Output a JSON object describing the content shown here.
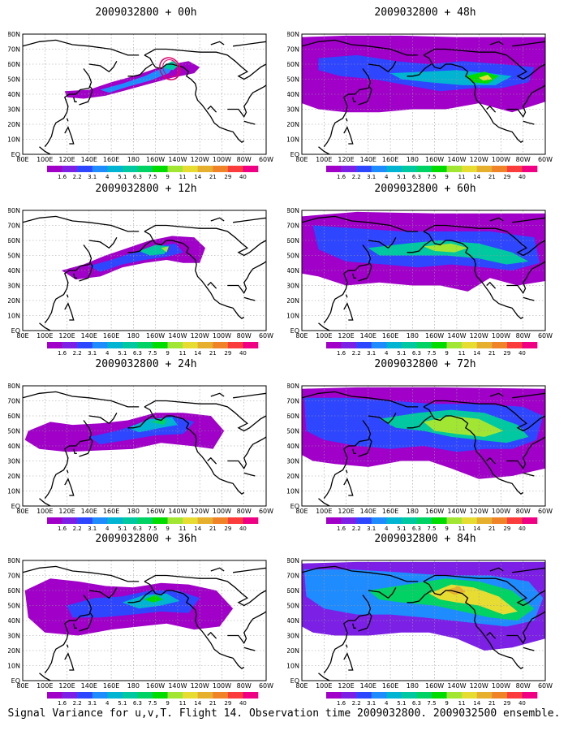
{
  "colors": {
    "bins": [
      "#a000c8",
      "#7c20e6",
      "#2e46ff",
      "#1e8cff",
      "#00b4d2",
      "#00c8a0",
      "#00d264",
      "#00dc00",
      "#a0e632",
      "#e6dc32",
      "#e6af2d",
      "#f08228",
      "#fa3c3c",
      "#f00082"
    ],
    "land": "#000000",
    "grid": "#9a9a9a"
  },
  "colorbar_labels": [
    "1.6",
    "2.2",
    "3.1",
    "4",
    "5.1",
    "6.3",
    "7.5",
    "9",
    "11",
    "14",
    "21",
    "29",
    "40"
  ],
  "lat_labels": [
    "80N",
    "70N",
    "60N",
    "50N",
    "40N",
    "30N",
    "20N",
    "10N",
    "EQ"
  ],
  "lon_labels": [
    "80E",
    "100E",
    "120E",
    "140E",
    "160E",
    "180",
    "160W",
    "140W",
    "120W",
    "100W",
    "80W",
    "60W"
  ],
  "caption": "Signal Variance for u,v,T. Flight 14. Observation time 2009032800. 2009032500 ensemble.",
  "chart_data": [
    {
      "type": "heatmap",
      "title": "2009032800 + 00h",
      "lead_hours": 0,
      "xlim": [
        "80E",
        "60W"
      ],
      "ylim": [
        "EQ",
        "80N"
      ],
      "colorbar_levels": [
        1.6,
        2.2,
        3.1,
        4,
        5.1,
        6.3,
        7.5,
        9,
        11,
        14,
        21,
        29,
        40
      ],
      "peak_bin": 5,
      "marker": "observation-ellipse"
    },
    {
      "type": "heatmap",
      "title": "2009032800 + 12h",
      "lead_hours": 12,
      "xlim": [
        "80E",
        "60W"
      ],
      "ylim": [
        "EQ",
        "80N"
      ],
      "colorbar_levels": [
        1.6,
        2.2,
        3.1,
        4,
        5.1,
        6.3,
        7.5,
        9,
        11,
        14,
        21,
        29,
        40
      ],
      "peak_bin": 8
    },
    {
      "type": "heatmap",
      "title": "2009032800 + 24h",
      "lead_hours": 24,
      "xlim": [
        "80E",
        "60W"
      ],
      "ylim": [
        "EQ",
        "80N"
      ],
      "colorbar_levels": [
        1.6,
        2.2,
        3.1,
        4,
        5.1,
        6.3,
        7.5,
        9,
        11,
        14,
        21,
        29,
        40
      ],
      "peak_bin": 6
    },
    {
      "type": "heatmap",
      "title": "2009032800 + 36h",
      "lead_hours": 36,
      "xlim": [
        "80E",
        "60W"
      ],
      "ylim": [
        "EQ",
        "80N"
      ],
      "colorbar_levels": [
        1.6,
        2.2,
        3.1,
        4,
        5.1,
        6.3,
        7.5,
        9,
        11,
        14,
        21,
        29,
        40
      ],
      "peak_bin": 7
    },
    {
      "type": "heatmap",
      "title": "2009032800 + 48h",
      "lead_hours": 48,
      "xlim": [
        "80E",
        "60W"
      ],
      "ylim": [
        "EQ",
        "80N"
      ],
      "colorbar_levels": [
        1.6,
        2.2,
        3.1,
        4,
        5.1,
        6.3,
        7.5,
        9,
        11,
        14,
        21,
        29,
        40
      ],
      "peak_bin": 8
    },
    {
      "type": "heatmap",
      "title": "2009032800 + 60h",
      "lead_hours": 60,
      "xlim": [
        "80E",
        "60W"
      ],
      "ylim": [
        "EQ",
        "80N"
      ],
      "colorbar_levels": [
        1.6,
        2.2,
        3.1,
        4,
        5.1,
        6.3,
        7.5,
        9,
        11,
        14,
        21,
        29,
        40
      ],
      "peak_bin": 8
    },
    {
      "type": "heatmap",
      "title": "2009032800 + 72h",
      "lead_hours": 72,
      "xlim": [
        "80E",
        "60W"
      ],
      "ylim": [
        "EQ",
        "80N"
      ],
      "colorbar_levels": [
        1.6,
        2.2,
        3.1,
        4,
        5.1,
        6.3,
        7.5,
        9,
        11,
        14,
        21,
        29,
        40
      ],
      "peak_bin": 9
    },
    {
      "type": "heatmap",
      "title": "2009032800 + 84h",
      "lead_hours": 84,
      "xlim": [
        "80E",
        "60W"
      ],
      "ylim": [
        "EQ",
        "80N"
      ],
      "colorbar_levels": [
        1.6,
        2.2,
        3.1,
        4,
        5.1,
        6.3,
        7.5,
        9,
        11,
        14,
        21,
        29,
        40
      ],
      "peak_bin": 10
    }
  ]
}
